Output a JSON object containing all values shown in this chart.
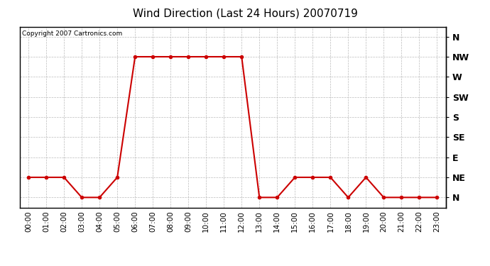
{
  "title": "Wind Direction (Last 24 Hours) 20070719",
  "copyright_text": "Copyright 2007 Cartronics.com",
  "x_labels": [
    "00:00",
    "01:00",
    "02:00",
    "03:00",
    "04:00",
    "05:00",
    "06:00",
    "07:00",
    "08:00",
    "09:00",
    "10:00",
    "11:00",
    "12:00",
    "13:00",
    "14:00",
    "15:00",
    "16:00",
    "17:00",
    "18:00",
    "19:00",
    "20:00",
    "21:00",
    "22:00",
    "23:00"
  ],
  "y_labels": [
    "N",
    "NE",
    "E",
    "SE",
    "S",
    "SW",
    "W",
    "NW",
    "N"
  ],
  "y_values": [
    0,
    1,
    2,
    3,
    4,
    5,
    6,
    7,
    8
  ],
  "wind_data": [
    1,
    1,
    1,
    0,
    0,
    1,
    7,
    7,
    7,
    7,
    7,
    7,
    7,
    0,
    0,
    1,
    1,
    1,
    0,
    1,
    0,
    0,
    0,
    0
  ],
  "line_color": "#cc0000",
  "marker_color": "#cc0000",
  "bg_color": "#ffffff",
  "grid_color": "#bbbbbb",
  "title_fontsize": 11,
  "copyright_fontsize": 6.5,
  "tick_label_fontsize": 7.5,
  "y_tick_fontsize": 9
}
